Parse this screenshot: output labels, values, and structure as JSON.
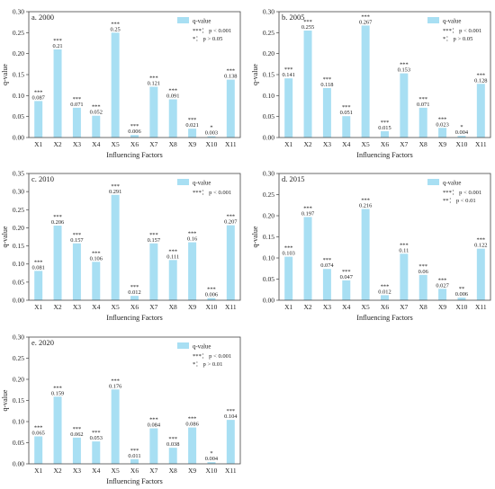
{
  "colors": {
    "bar": "#a8dff3",
    "axis": "#444444",
    "text": "#222222"
  },
  "chart_data": [
    {
      "type": "bar",
      "panel": "a.  2000",
      "categories": [
        "X1",
        "X2",
        "X3",
        "X4",
        "X5",
        "X6",
        "X7",
        "X8",
        "X9",
        "X10",
        "X11"
      ],
      "values": [
        0.087,
        0.21,
        0.071,
        0.052,
        0.25,
        0.006,
        0.121,
        0.091,
        0.021,
        0.003,
        0.138
      ],
      "value_labels": [
        "0.087",
        "0.21",
        "0.071",
        "0.052",
        "0.25",
        "0.006",
        "0.121",
        "0.091",
        "0.021",
        "0.003",
        "0.138"
      ],
      "significance": [
        "***",
        "***",
        "***",
        "***",
        "***",
        "***",
        "***",
        "***",
        "***",
        "*",
        "***"
      ],
      "legend": "q-value",
      "notes": [
        "***：  p < 0.001",
        "*：  p > 0.05"
      ],
      "xlabel": "Influencing Factors",
      "ylabel": "q-value",
      "ylim": [
        0,
        0.3
      ],
      "yticks": [
        "0.00",
        "0.05",
        "0.10",
        "0.15",
        "0.20",
        "0.25",
        "0.30"
      ],
      "legend_position": "top-right"
    },
    {
      "type": "bar",
      "panel": "b.  2005",
      "categories": [
        "X1",
        "X2",
        "X3",
        "X4",
        "X5",
        "X6",
        "X7",
        "X8",
        "X9",
        "X10",
        "X11"
      ],
      "values": [
        0.141,
        0.255,
        0.118,
        0.051,
        0.267,
        0.015,
        0.153,
        0.071,
        0.023,
        0.004,
        0.128
      ],
      "value_labels": [
        "0.141",
        "0.255",
        "0.118",
        "0.051",
        "0.267",
        "0.015",
        "0.153",
        "0.071",
        "0.023",
        "0.004",
        "0.128"
      ],
      "significance": [
        "***",
        "***",
        "***",
        "***",
        "***",
        "***",
        "***",
        "***",
        "***",
        "*",
        "***"
      ],
      "legend": "q-value",
      "notes": [
        "***：  p < 0.001",
        "*：  p > 0.05"
      ],
      "xlabel": "Influencing Factors",
      "ylabel": "q-value",
      "ylim": [
        0,
        0.3
      ],
      "yticks": [
        "0.00",
        "0.05",
        "0.10",
        "0.15",
        "0.20",
        "0.25",
        "0.30"
      ],
      "legend_position": "top-right"
    },
    {
      "type": "bar",
      "panel": "c.  2010",
      "categories": [
        "X1",
        "X2",
        "X3",
        "X4",
        "X5",
        "X6",
        "X7",
        "X8",
        "X9",
        "X10",
        "X11"
      ],
      "values": [
        0.081,
        0.206,
        0.157,
        0.106,
        0.291,
        0.012,
        0.157,
        0.111,
        0.16,
        0.006,
        0.207
      ],
      "value_labels": [
        "0.081",
        "0.206",
        "0.157",
        "0.106",
        "0.291",
        "0.012",
        "0.157",
        "0.111",
        "0.16",
        "0.006",
        "0.207"
      ],
      "significance": [
        "***",
        "***",
        "***",
        "***",
        "***",
        "***",
        "***",
        "***",
        "***",
        "***",
        "***"
      ],
      "legend": "q-value",
      "notes": [
        "***：  p < 0.001"
      ],
      "xlabel": "Influencing Factors",
      "ylabel": "q-value",
      "ylim": [
        0,
        0.35
      ],
      "yticks": [
        "0.00",
        "0.05",
        "0.10",
        "0.15",
        "0.20",
        "0.25",
        "0.30",
        "0.35"
      ],
      "legend_position": "top-right"
    },
    {
      "type": "bar",
      "panel": "d.  2015",
      "categories": [
        "X1",
        "X2",
        "X3",
        "X4",
        "X5",
        "X6",
        "X7",
        "X8",
        "X9",
        "X10",
        "X11"
      ],
      "values": [
        0.103,
        0.197,
        0.074,
        0.047,
        0.216,
        0.012,
        0.11,
        0.06,
        0.027,
        0.006,
        0.122
      ],
      "value_labels": [
        "0.103",
        "0.197",
        "0.074",
        "0.047",
        "0.216",
        "0.012",
        "0.11",
        "0.06",
        "0.027",
        "0.006",
        "0.122"
      ],
      "significance": [
        "***",
        "***",
        "***",
        "***",
        "***",
        "***",
        "***",
        "***",
        "***",
        "**",
        "***"
      ],
      "legend": "q-value",
      "notes": [
        "***：  p < 0.001",
        "**：  p < 0.01"
      ],
      "xlabel": "Influencing Factors",
      "ylabel": "q-value",
      "ylim": [
        0,
        0.3
      ],
      "yticks": [
        "0.00",
        "0.05",
        "0.10",
        "0.15",
        "0.20",
        "0.25",
        "0.30"
      ],
      "legend_position": "top-right"
    },
    {
      "type": "bar",
      "panel": "e.  2020",
      "categories": [
        "X1",
        "X2",
        "X3",
        "X4",
        "X5",
        "X6",
        "X7",
        "X8",
        "X9",
        "X10",
        "X11"
      ],
      "values": [
        0.065,
        0.159,
        0.062,
        0.053,
        0.176,
        0.011,
        0.084,
        0.038,
        0.086,
        0.004,
        0.104
      ],
      "value_labels": [
        "0.065",
        "0.159",
        "0.062",
        "0.053",
        "0.176",
        "0.011",
        "0.084",
        "0.038",
        "0.086",
        "0.004",
        "0.104"
      ],
      "significance": [
        "***",
        "***",
        "***",
        "***",
        "***",
        "***",
        "***",
        "***",
        "***",
        "*",
        "***"
      ],
      "legend": "q-value",
      "notes": [
        "***：  p < 0.001",
        "*：  p > 0.01"
      ],
      "xlabel": "Influencing Factors",
      "ylabel": "q-value",
      "ylim": [
        0,
        0.3
      ],
      "yticks": [
        "0.00",
        "0.05",
        "0.10",
        "0.15",
        "0.20",
        "0.25",
        "0.30"
      ],
      "legend_position": "top-right"
    }
  ]
}
